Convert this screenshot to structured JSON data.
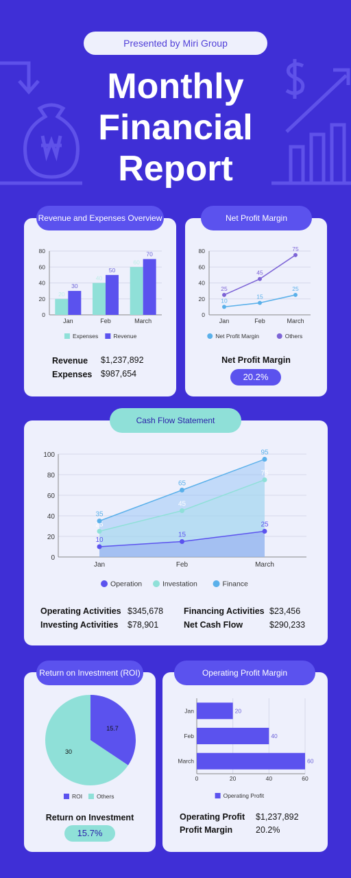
{
  "header": {
    "presented_by": "Presented by Miri Group",
    "title_line1": "Monthly",
    "title_line2": "Financial",
    "title_line3": "Report"
  },
  "revenue_card": {
    "title": "Revenue and Expenses Overview",
    "revenue_label": "Revenue",
    "revenue_value": "$1,237,892",
    "expenses_label": "Expenses",
    "expenses_value": "$987,654"
  },
  "margin_card": {
    "title": "Net Profit Margin",
    "label": "Net Profit Margin",
    "value": "20.2%"
  },
  "cashflow_card": {
    "title": "Cash Flow Statement",
    "operating_label": "Operating Activities",
    "operating_value": "$345,678",
    "investing_label": "Investing Activities",
    "investing_value": "$78,901",
    "financing_label": "Financing Activities",
    "financing_value": "$23,456",
    "net_label": "Net Cash Flow",
    "net_value": "$290,233"
  },
  "roi_card": {
    "title": "Return on Investment (ROI)",
    "label": "Return on Investment",
    "value": "15.7%"
  },
  "op_margin_card": {
    "title": "Operating Profit Margin",
    "op_label": "Operating Profit",
    "op_value": "$1,237,892",
    "pm_label": "Profit Margin",
    "pm_value": "20.2%"
  },
  "colors": {
    "background": "#3f2fd6",
    "purple": "#5b52ee",
    "teal": "#8fe0d8",
    "line_purple": "#7d64d6",
    "line_blue": "#5ab0ea"
  },
  "chart_data": [
    {
      "id": "rev",
      "type": "bar",
      "categories": [
        "Jan",
        "Feb",
        "March"
      ],
      "series": [
        {
          "name": "Expenses",
          "values": [
            20,
            40,
            60
          ],
          "color": "#8fe0d8"
        },
        {
          "name": "Revenue",
          "values": [
            30,
            50,
            70
          ],
          "color": "#5b52ee"
        }
      ],
      "ylim": [
        0,
        80
      ],
      "yticks": [
        0,
        20,
        40,
        60,
        80
      ],
      "legend": "bottom"
    },
    {
      "id": "npm",
      "type": "line",
      "categories": [
        "Jan",
        "Feb",
        "March"
      ],
      "series": [
        {
          "name": "Net Profit Margin",
          "values": [
            10,
            15,
            25
          ],
          "color": "#5ab0ea"
        },
        {
          "name": "Others",
          "values": [
            25,
            45,
            75
          ],
          "color": "#7d64d6"
        }
      ],
      "ylim": [
        0,
        80
      ],
      "yticks": [
        0,
        20,
        40,
        60,
        80
      ],
      "legend": "bottom"
    },
    {
      "id": "cash",
      "type": "area",
      "categories": [
        "Jan",
        "Feb",
        "March"
      ],
      "series": [
        {
          "name": "Operation",
          "values": [
            10,
            15,
            25
          ],
          "color": "#5b52ee"
        },
        {
          "name": "Investation",
          "values": [
            25,
            45,
            75
          ],
          "color": "#8fe0d8"
        },
        {
          "name": "Finance",
          "values": [
            35,
            65,
            95
          ],
          "color": "#5ab0ea"
        }
      ],
      "ylim": [
        0,
        100
      ],
      "yticks": [
        0,
        20,
        40,
        60,
        80,
        100
      ],
      "legend": "bottom"
    },
    {
      "id": "roi",
      "type": "pie",
      "slices": [
        {
          "name": "ROI",
          "value": 15.7,
          "color": "#5b52ee"
        },
        {
          "name": "Others",
          "value": 30,
          "color": "#8fe0d8"
        }
      ],
      "legend": "bottom"
    },
    {
      "id": "opm",
      "type": "bar",
      "orientation": "horizontal",
      "categories": [
        "Jan",
        "Feb",
        "March"
      ],
      "series": [
        {
          "name": "Operating Profit",
          "values": [
            20,
            40,
            60
          ],
          "color": "#5b52ee"
        }
      ],
      "xlim": [
        0,
        60
      ],
      "xticks": [
        0,
        20,
        40,
        60
      ],
      "legend": "bottom"
    }
  ]
}
